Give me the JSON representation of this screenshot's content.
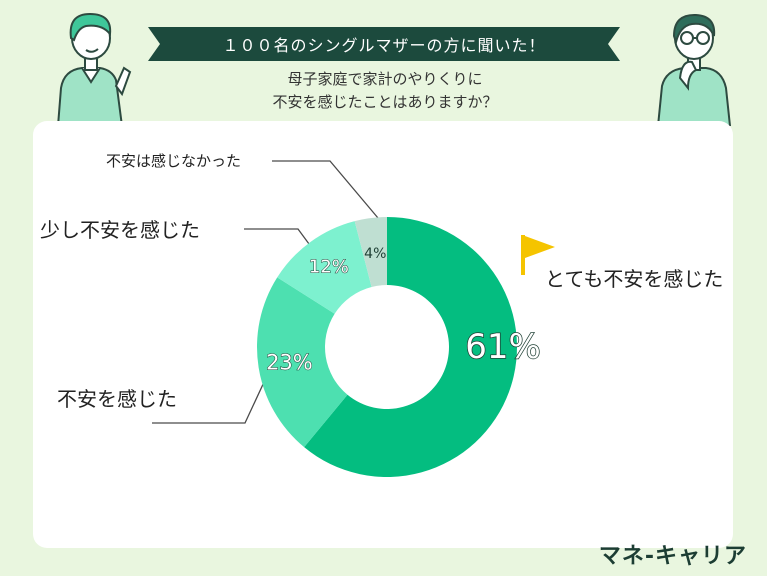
{
  "header": {
    "banner": "１００名のシングルマザーの方に聞いた！",
    "question_line1": "母子家庭で家計のやりくりに",
    "question_line2": "不安を感じたことはありますか？"
  },
  "brand": "マネ-キャリア",
  "colors": {
    "background": "#e9f6df",
    "banner": "#1c4a3d",
    "slice_very": "#04bd80",
    "slice_felt": "#4de0b0",
    "slice_slight": "#7df1cf",
    "slice_none": "#bfdfd2",
    "flag": "#f5c400"
  },
  "chart_data": {
    "type": "pie",
    "donut": true,
    "categories": [
      "とても不安を感じた",
      "不安を感じた",
      "少し不安を感じた",
      "不安は感じなかった"
    ],
    "values": [
      61,
      23,
      12,
      4
    ],
    "value_labels": [
      "61%",
      "23%",
      "12%",
      "4%"
    ],
    "legend": "callout labels"
  }
}
